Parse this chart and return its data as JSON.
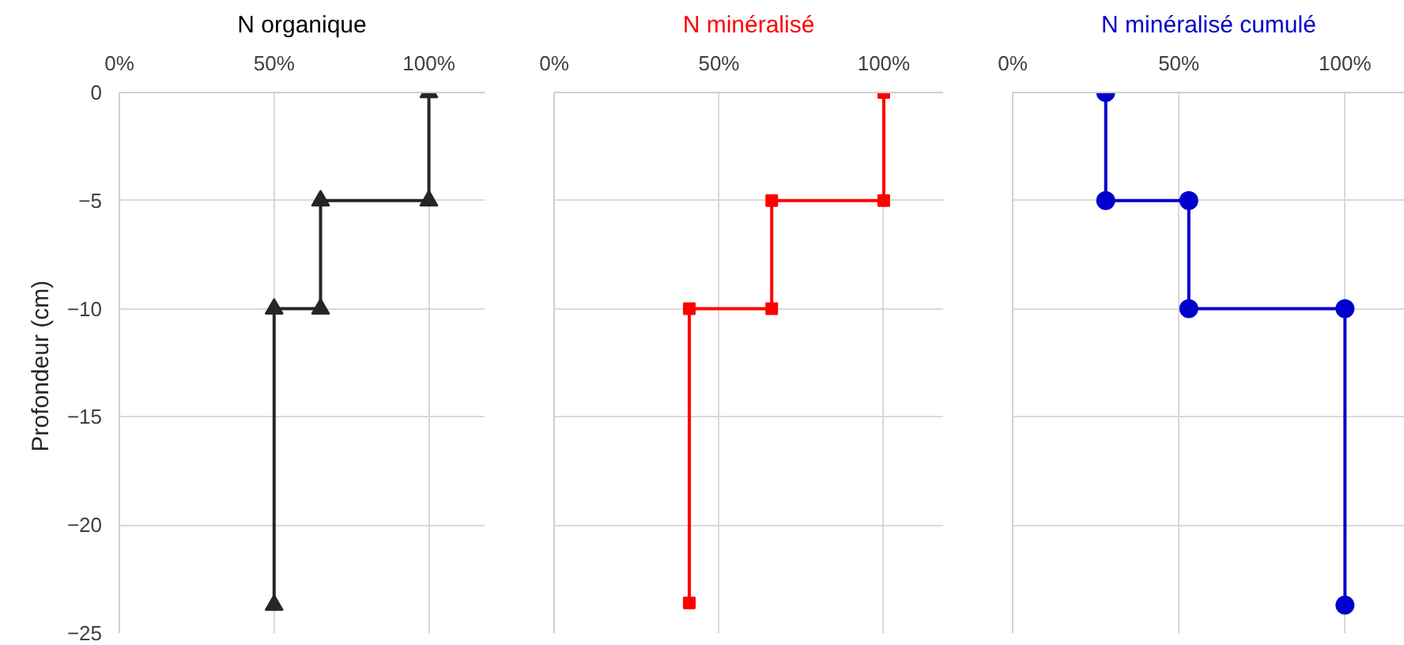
{
  "chart_data": [
    {
      "type": "line",
      "title": "N organique",
      "ylabel": "Profondeur  (cm)",
      "marker": "triangle",
      "grid": true,
      "xlim": [
        0,
        118
      ],
      "xticks": [
        {
          "value": 0,
          "label": "0%"
        },
        {
          "value": 50,
          "label": "50%"
        },
        {
          "value": 100,
          "label": "100%"
        }
      ],
      "ylim": [
        -25,
        0
      ],
      "yticks": [
        0,
        -5,
        -10,
        -15,
        -20,
        -25
      ],
      "series": [
        {
          "color": "#262626",
          "x": [
            100,
            100,
            65,
            65,
            50,
            50
          ],
          "values": [
            0,
            -5,
            -5,
            -10,
            -10,
            -23.7
          ]
        }
      ]
    },
    {
      "type": "line",
      "title": "N minéralisé",
      "marker": "square",
      "grid": true,
      "tick_labels": "x",
      "xlim": [
        0,
        118
      ],
      "xticks": [
        {
          "value": 0,
          "label": "0%"
        },
        {
          "value": 50,
          "label": "50%"
        },
        {
          "value": 100,
          "label": "100%"
        }
      ],
      "ylim": [
        -25,
        0
      ],
      "yticks": [
        0,
        -5,
        -10,
        -15,
        -20,
        -25
      ],
      "series": [
        {
          "color": "#ff0000",
          "x": [
            100,
            100,
            66,
            66,
            41,
            41
          ],
          "values": [
            0,
            -5,
            -5,
            -10,
            -10,
            -23.6
          ]
        }
      ]
    },
    {
      "type": "line",
      "title": "N minéralisé cumulé",
      "marker": "circle",
      "grid": true,
      "tick_labels": "x",
      "xlim": [
        0,
        118
      ],
      "xticks": [
        {
          "value": 0,
          "label": "0%"
        },
        {
          "value": 50,
          "label": "50%"
        },
        {
          "value": 100,
          "label": "100%"
        }
      ],
      "ylim": [
        -25,
        0
      ],
      "yticks": [
        0,
        -5,
        -10,
        -15,
        -20,
        -25
      ],
      "series": [
        {
          "color": "#0000cc",
          "x": [
            28,
            28,
            53,
            53,
            100,
            100
          ],
          "values": [
            0,
            -5,
            -5,
            -10,
            -10,
            -23.7
          ]
        }
      ]
    }
  ]
}
